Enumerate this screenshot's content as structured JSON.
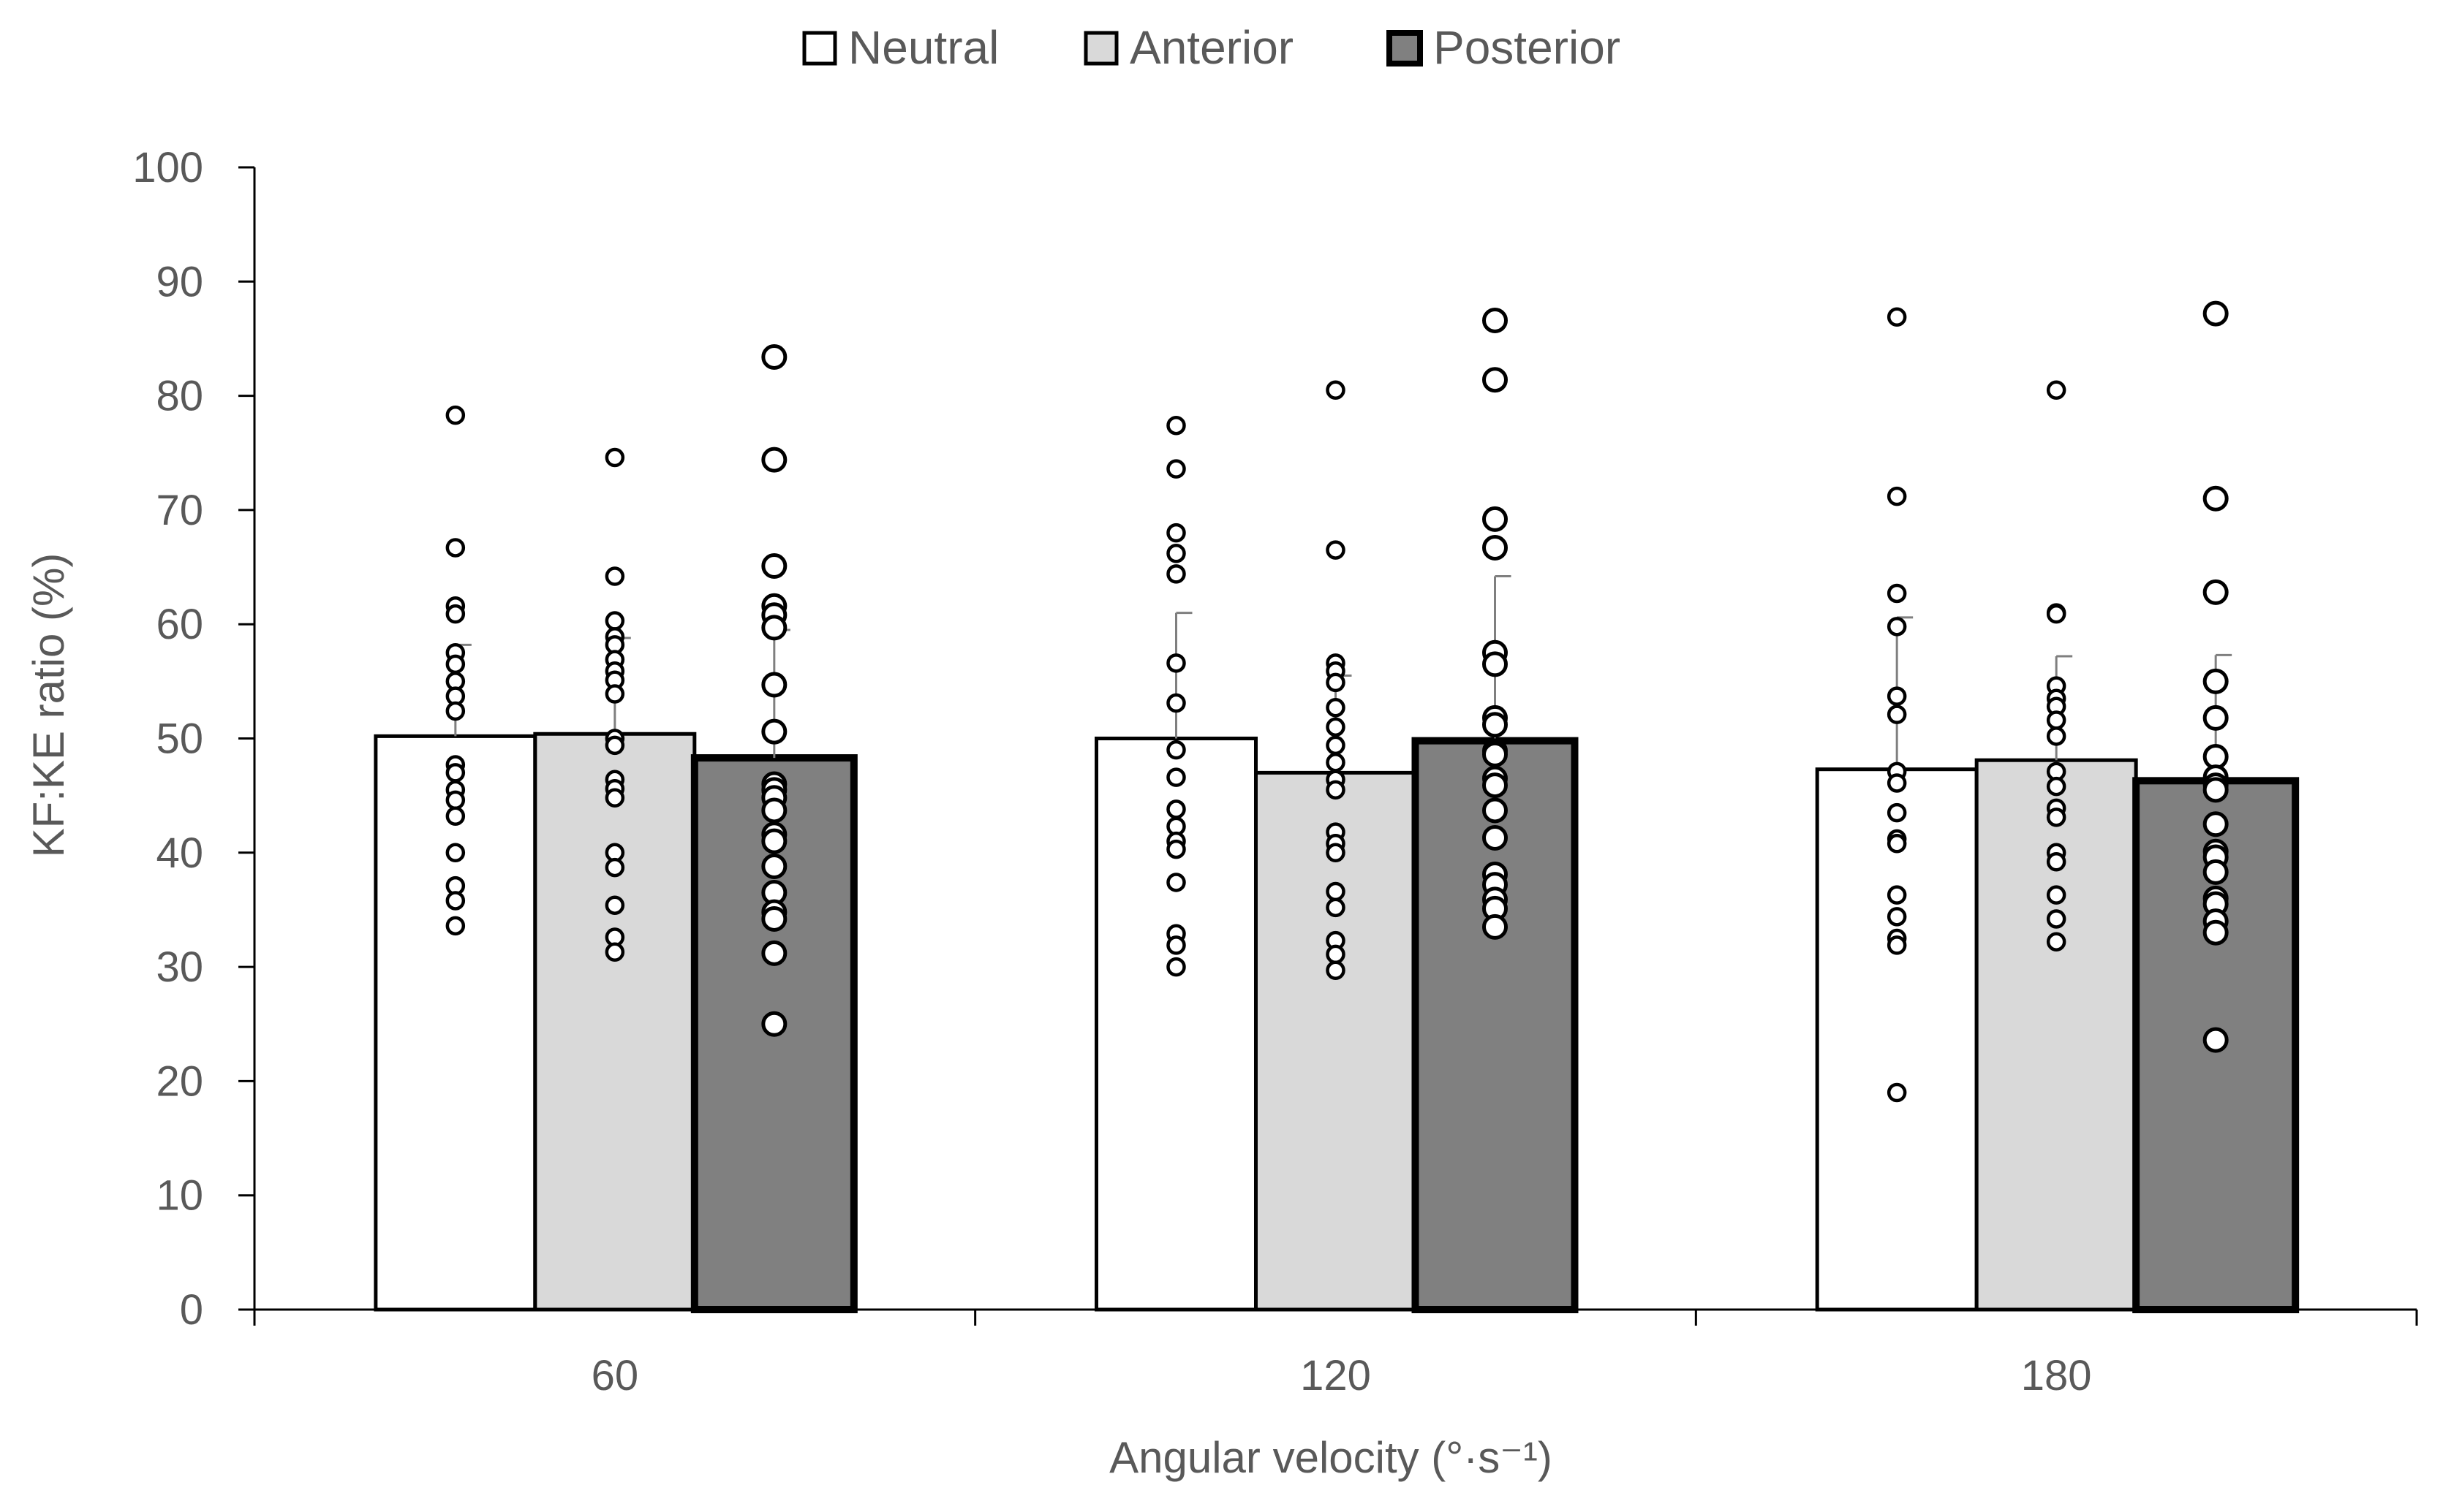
{
  "chart_data": {
    "type": "bar",
    "title": "",
    "xlabel": "Angular velocity  (°·s⁻¹)",
    "ylabel": "KF:KE ratio (%)",
    "ylim": [
      0,
      100
    ],
    "yticks": [
      0,
      10,
      20,
      30,
      40,
      50,
      60,
      70,
      80,
      90,
      100
    ],
    "categories": [
      "60",
      "120",
      "180"
    ],
    "legend_position": "top-center",
    "series": [
      {
        "name": "Neutral",
        "fill": "#ffffff",
        "stroke": "#000000",
        "values": [
          50.2,
          50.0,
          47.3
        ],
        "error": [
          8.0,
          11.0,
          13.3
        ],
        "points": [
          [
            78.3,
            66.7,
            61.6,
            60.9,
            57.5,
            56.5,
            55.0,
            53.7,
            52.4,
            47.7,
            47.0,
            45.5,
            44.6,
            43.2,
            40.0,
            37.1,
            35.8,
            33.6
          ],
          [
            77.4,
            73.6,
            68.0,
            66.2,
            64.4,
            56.6,
            53.1,
            49.0,
            46.6,
            43.8,
            42.3,
            41.0,
            40.3,
            37.4,
            32.9,
            31.9,
            30.0
          ],
          [
            86.9,
            71.2,
            62.7,
            59.8,
            53.7,
            52.1,
            47.1,
            46.1,
            43.5,
            41.2,
            40.8,
            36.3,
            34.4,
            32.5,
            31.9,
            19.0
          ]
        ]
      },
      {
        "name": "Anterior",
        "fill": "#d9d9d9",
        "stroke": "#000000",
        "values": [
          50.4,
          47.0,
          48.1
        ],
        "error": [
          8.4,
          8.5,
          9.1
        ],
        "points": [
          [
            74.6,
            64.2,
            60.3,
            58.9,
            58.2,
            56.9,
            55.9,
            55.1,
            53.9,
            50.0,
            49.4,
            46.4,
            45.6,
            44.8,
            40.0,
            38.7,
            35.4,
            32.6,
            31.3
          ],
          [
            80.5,
            66.5,
            56.6,
            55.9,
            54.9,
            52.7,
            51.0,
            49.4,
            47.9,
            46.4,
            45.5,
            41.8,
            40.8,
            40.0,
            36.6,
            35.2,
            32.3,
            31.1,
            29.7
          ],
          [
            80.5,
            61.0,
            60.9,
            54.6,
            53.5,
            52.8,
            51.6,
            50.2,
            47.1,
            45.8,
            43.9,
            43.1,
            40.0,
            39.2,
            36.3,
            34.2,
            32.2
          ]
        ]
      },
      {
        "name": "Posterior",
        "fill": "#808080",
        "stroke": "#000000",
        "values": [
          48.3,
          49.8,
          46.3
        ],
        "error": [
          11.2,
          14.4,
          11.0
        ],
        "points": [
          [
            83.4,
            74.4,
            65.1,
            61.6,
            60.8,
            59.7,
            54.7,
            50.6,
            46.0,
            45.5,
            44.8,
            43.7,
            41.6,
            41.0,
            38.8,
            36.5,
            34.8,
            34.2,
            31.2,
            25.0
          ],
          [
            86.6,
            81.4,
            69.2,
            66.7,
            57.5,
            56.5,
            51.8,
            51.2,
            48.9,
            48.6,
            46.5,
            45.9,
            43.7,
            41.3,
            38.1,
            37.2,
            35.9,
            35.1,
            33.5
          ],
          [
            87.2,
            71.0,
            62.8,
            55.0,
            51.8,
            48.4,
            46.6,
            45.9,
            45.5,
            42.5,
            40.1,
            39.6,
            38.3,
            36.0,
            35.5,
            34.0,
            33.0,
            23.6
          ]
        ]
      }
    ]
  }
}
